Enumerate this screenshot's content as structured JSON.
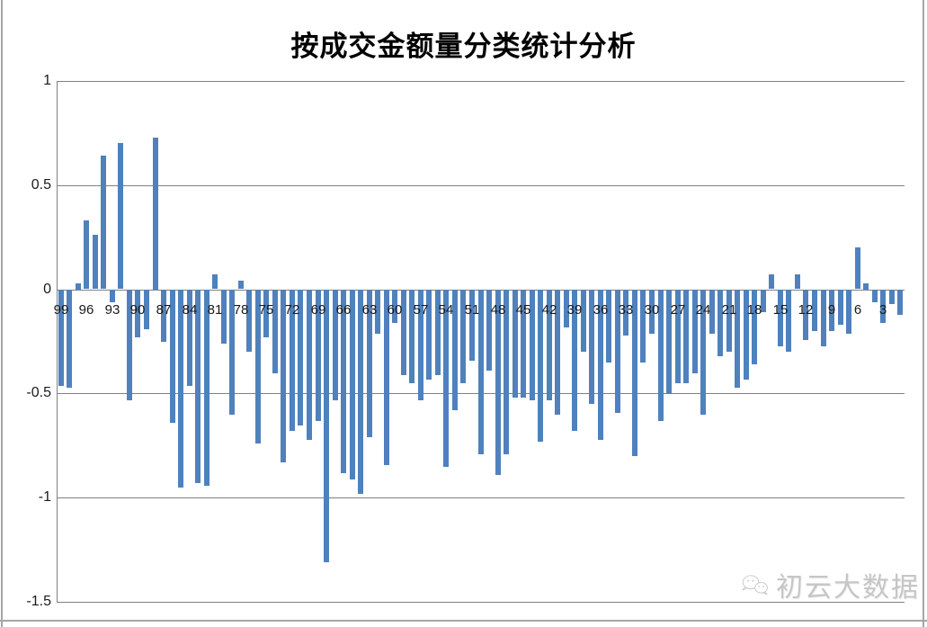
{
  "title": "按成交金额量分类统计分析",
  "watermark": {
    "text": "初云大数据",
    "logo": "chat-bubbles-icon"
  },
  "chart_data": {
    "type": "bar",
    "title": "按成交金额量分类统计分析",
    "categories": [
      99,
      98,
      97,
      96,
      95,
      94,
      93,
      92,
      91,
      90,
      89,
      88,
      87,
      86,
      85,
      84,
      83,
      82,
      81,
      80,
      79,
      78,
      77,
      76,
      75,
      74,
      73,
      72,
      71,
      70,
      69,
      68,
      67,
      66,
      65,
      64,
      63,
      62,
      61,
      60,
      59,
      58,
      57,
      56,
      55,
      54,
      53,
      52,
      51,
      50,
      49,
      48,
      47,
      46,
      45,
      44,
      43,
      42,
      41,
      40,
      39,
      38,
      37,
      36,
      35,
      34,
      33,
      32,
      31,
      30,
      29,
      28,
      27,
      26,
      25,
      24,
      23,
      22,
      21,
      20,
      19,
      18,
      17,
      16,
      15,
      14,
      13,
      12,
      11,
      10,
      9,
      8,
      7,
      6,
      5,
      4,
      3,
      2,
      1
    ],
    "values": [
      -0.46,
      -0.47,
      0.03,
      0.33,
      0.26,
      0.64,
      -0.06,
      0.7,
      -0.53,
      -0.23,
      -0.19,
      0.73,
      -0.25,
      -0.64,
      -0.95,
      -0.46,
      -0.93,
      -0.94,
      0.07,
      -0.26,
      -0.6,
      0.04,
      -0.3,
      -0.74,
      -0.23,
      -0.4,
      -0.83,
      -0.68,
      -0.65,
      -0.72,
      -0.63,
      -1.31,
      -0.53,
      -0.88,
      -0.91,
      -0.98,
      -0.71,
      -0.21,
      -0.84,
      -0.16,
      -0.41,
      -0.45,
      -0.53,
      -0.43,
      -0.41,
      -0.85,
      -0.58,
      -0.45,
      -0.34,
      -0.79,
      -0.39,
      -0.89,
      -0.79,
      -0.52,
      -0.52,
      -0.53,
      -0.73,
      -0.53,
      -0.6,
      -0.18,
      -0.68,
      -0.3,
      -0.55,
      -0.72,
      -0.35,
      -0.59,
      -0.22,
      -0.8,
      -0.35,
      -0.21,
      -0.63,
      -0.5,
      -0.45,
      -0.45,
      -0.4,
      -0.6,
      -0.21,
      -0.32,
      -0.3,
      -0.47,
      -0.43,
      -0.36,
      -0.11,
      0.07,
      -0.27,
      -0.3,
      0.07,
      -0.24,
      -0.2,
      -0.27,
      -0.2,
      -0.17,
      -0.21,
      0.2,
      0.03,
      -0.06,
      -0.16,
      -0.07,
      -0.12
    ],
    "xtick_labels": [
      "99",
      "96",
      "93",
      "90",
      "87",
      "84",
      "81",
      "78",
      "75",
      "72",
      "69",
      "66",
      "63",
      "60",
      "57",
      "54",
      "51",
      "48",
      "45",
      "42",
      "39",
      "36",
      "33",
      "30",
      "27",
      "24",
      "21",
      "18",
      "15",
      "12",
      "9",
      "6",
      "3"
    ],
    "xtick_every": 3,
    "yticks": [
      {
        "label": "1",
        "value": 1
      },
      {
        "label": "0.5",
        "value": 0.5
      },
      {
        "label": "0",
        "value": 0
      },
      {
        "label": "-0.5",
        "value": -0.5
      },
      {
        "label": "-1",
        "value": -1
      },
      {
        "label": "-1.5",
        "value": -1.5
      }
    ],
    "ylim": [
      -1.5,
      1
    ],
    "grid": true,
    "legend": false,
    "bar_color": "#4F81BD",
    "axis_color": "#808080"
  }
}
